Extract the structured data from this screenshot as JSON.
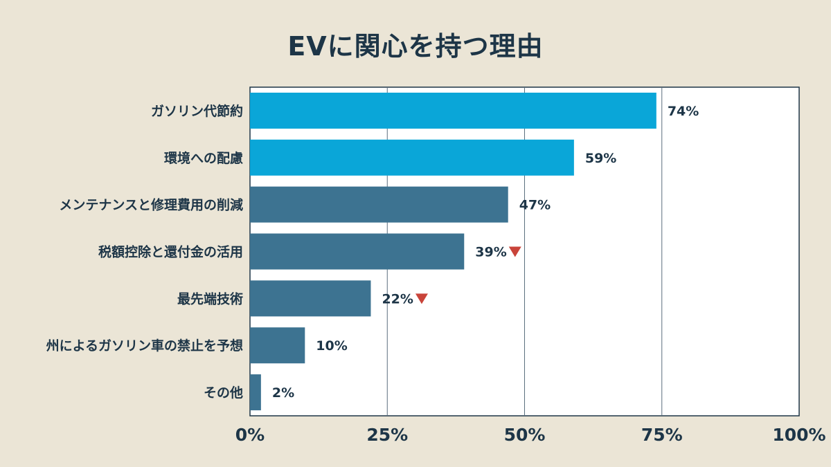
{
  "chart_data": {
    "type": "bar",
    "orientation": "horizontal",
    "title": "EVに関心を持つ理由",
    "categories": [
      "ガソリン代節約",
      "環境への配慮",
      "メンテナンスと修理費用の削減",
      "税額控除と還付金の活用",
      "最先端技術",
      "州によるガソリン車の禁止を予想",
      "その他"
    ],
    "values": [
      74,
      59,
      47,
      39,
      22,
      10,
      2
    ],
    "value_labels": [
      "74%",
      "59%",
      "47%",
      "39%",
      "22%",
      "10%",
      "2%"
    ],
    "trend_down": [
      false,
      false,
      false,
      true,
      true,
      false,
      false
    ],
    "bar_colors": [
      "#0aa6d8",
      "#0aa6d8",
      "#3d7391",
      "#3d7391",
      "#3d7391",
      "#3d7391",
      "#3d7391"
    ],
    "down_marker_color": "#c9443a",
    "xlim": [
      0,
      100
    ],
    "x_ticks": [
      0,
      25,
      50,
      75,
      100
    ],
    "x_tick_labels": [
      "0%",
      "25%",
      "50%",
      "75%",
      "100%"
    ],
    "grid": true,
    "legend": "none"
  }
}
